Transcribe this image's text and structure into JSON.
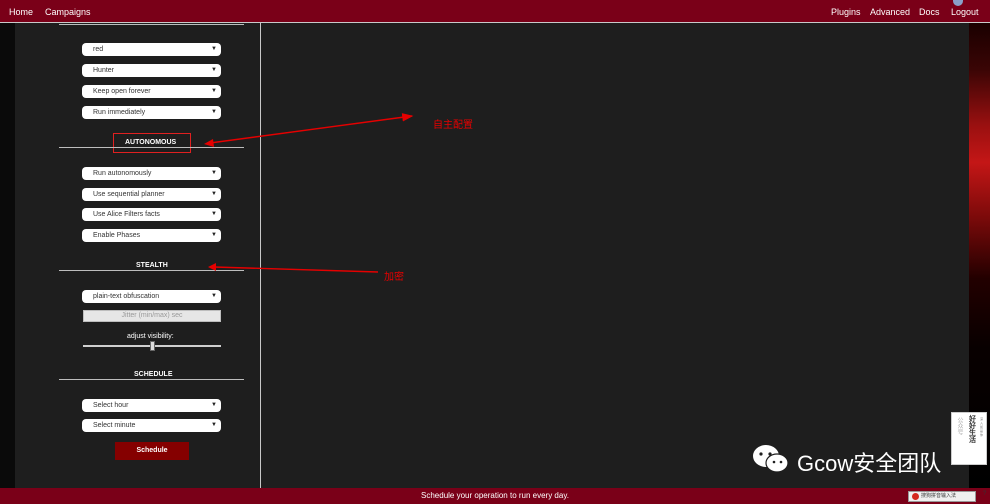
{
  "topbar": {
    "left_links": [
      "Home",
      "Campaigns"
    ],
    "right_links": [
      "Plugins",
      "Advanced",
      "Docs",
      "Logout"
    ]
  },
  "sidebar": {
    "general_selects": [
      "red",
      "Hunter",
      "Keep open forever",
      "Run immediately"
    ],
    "autonomous": {
      "title": "AUTONOMOUS",
      "selects": [
        "Run autonomously",
        "Use sequential planner",
        "Use Alice Filters facts",
        "Enable Phases"
      ]
    },
    "stealth": {
      "title": "STEALTH",
      "obfuscation": "plain-text obfuscation",
      "jitter_placeholder": "Jitter (min/max) sec",
      "visibility_label": "adjust visibility:",
      "visibility_level": 0.5
    },
    "schedule": {
      "title": "SCHEDULE",
      "hour": "Select hour",
      "minute": "Select minute",
      "button": "Schedule"
    }
  },
  "footer": {
    "text": "Schedule your operation to run every day.",
    "ime": "搜狗拼音输入法",
    "ime_extra": "?"
  },
  "annotations": {
    "autonomous_note": "自主配置",
    "stealth_note": "加密",
    "color": "#e60000"
  },
  "watermark": {
    "text": "Gcow安全团队",
    "badge_left": "公众号",
    "badge_main": "好好生活",
    "badge_small": "深入如是你"
  },
  "colors": {
    "header": "#7a0018",
    "panel": "#1e1e1e",
    "button": "#850000"
  }
}
